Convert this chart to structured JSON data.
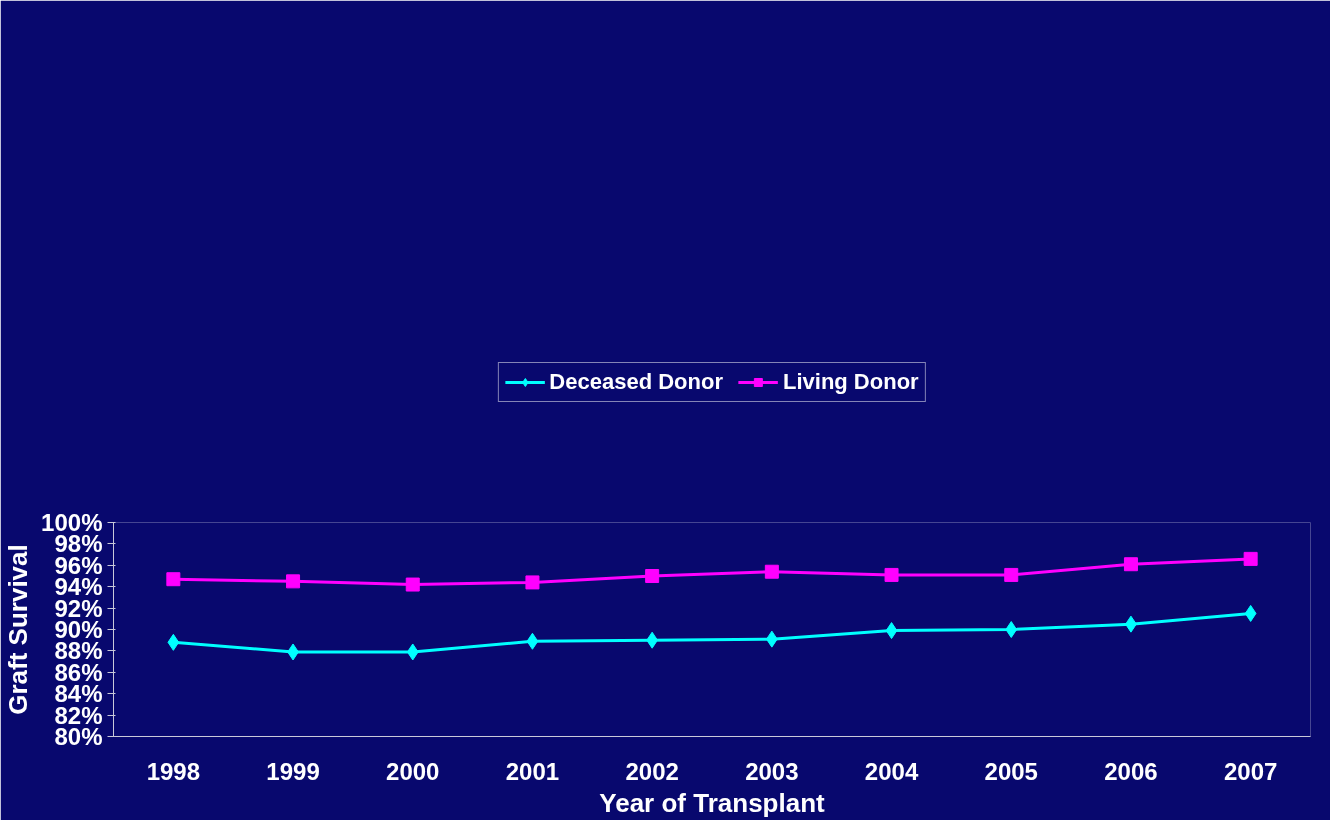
{
  "chart_data": {
    "type": "line",
    "xlabel": "Year of Transplant",
    "ylabel": "Graft Survival",
    "categories": [
      "1998",
      "1999",
      "2000",
      "2001",
      "2002",
      "2003",
      "2004",
      "2005",
      "2006",
      "2007"
    ],
    "series": [
      {
        "name": "Deceased Donor",
        "color": "#00ffff",
        "marker": "diamond",
        "values": [
          88.8,
          87.9,
          87.9,
          88.9,
          89.0,
          89.1,
          89.9,
          90.0,
          90.5,
          91.5
        ]
      },
      {
        "name": "Living Donor",
        "color": "#ff00ff",
        "marker": "square",
        "values": [
          94.7,
          94.5,
          94.2,
          94.4,
          95.0,
          95.4,
          95.1,
          95.1,
          96.1,
          96.6
        ]
      }
    ],
    "ylim": [
      80,
      100
    ],
    "yticks": [
      {
        "value": 80,
        "label": "80%"
      },
      {
        "value": 82,
        "label": "82%"
      },
      {
        "value": 84,
        "label": "84%"
      },
      {
        "value": 86,
        "label": "86%"
      },
      {
        "value": 88,
        "label": "88%"
      },
      {
        "value": 90,
        "label": "90%"
      },
      {
        "value": 92,
        "label": "92%"
      },
      {
        "value": 94,
        "label": "94%"
      },
      {
        "value": 96,
        "label": "96%"
      },
      {
        "value": 98,
        "label": "98%"
      },
      {
        "value": 100,
        "label": "100%"
      }
    ],
    "grid": false,
    "legend": "top",
    "line_style": "solid"
  }
}
